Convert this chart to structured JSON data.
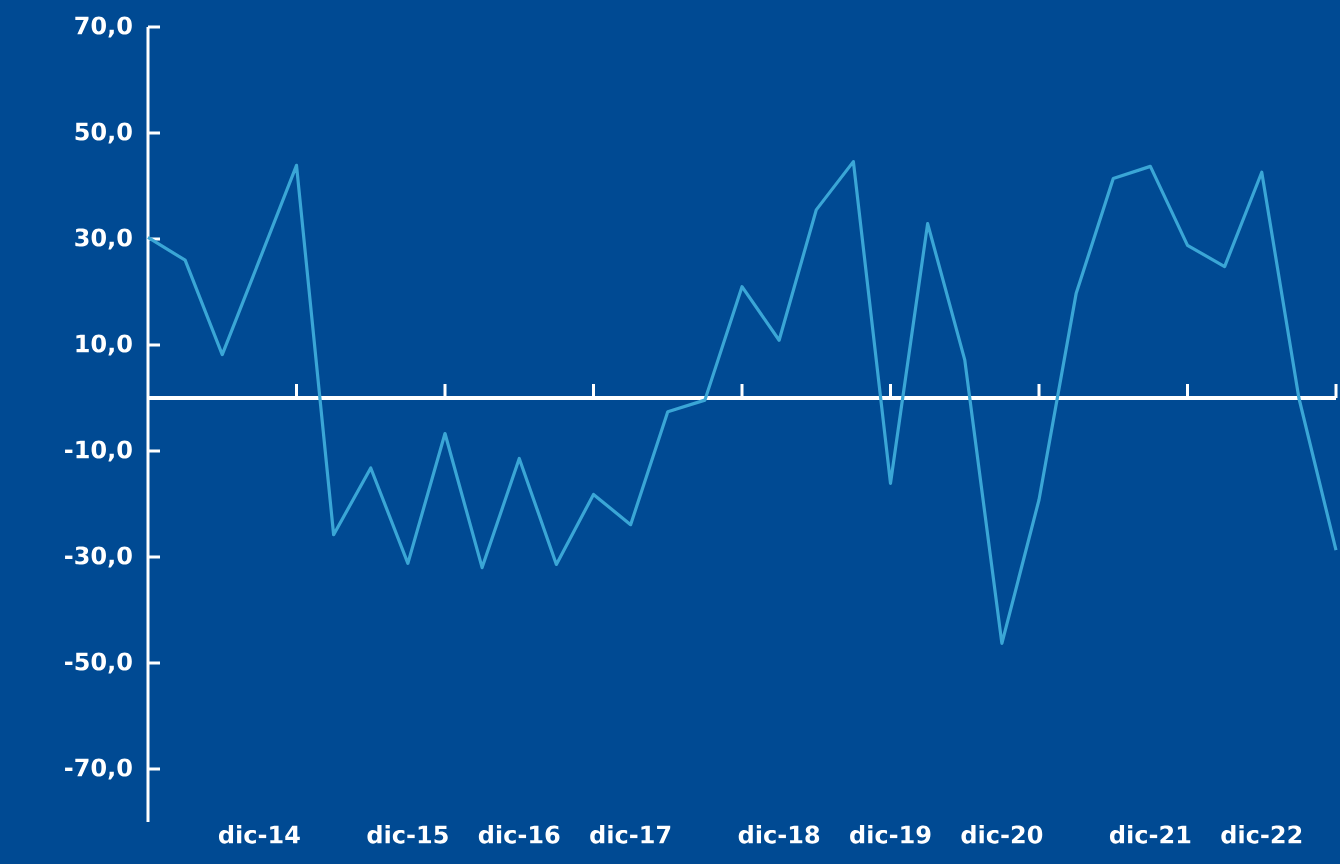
{
  "chart_data": {
    "type": "line",
    "categories": [
      null,
      null,
      null,
      "dic-14",
      null,
      null,
      null,
      "dic-15",
      null,
      null,
      "dic-16",
      null,
      null,
      "dic-17",
      null,
      null,
      null,
      "dic-18",
      null,
      null,
      "dic-19",
      null,
      null,
      "dic-20",
      null,
      null,
      null,
      "dic-21",
      null,
      null,
      "dic-22",
      null,
      null
    ],
    "series": [
      {
        "color": "#3aa6d6",
        "values": [
          30.3,
          26,
          8.2,
          26,
          43.9,
          -25.8,
          -13.2,
          -31.2,
          -6.7,
          -32,
          -11.4,
          -31.4,
          -18.2,
          -23.9,
          -2.6,
          -0.4,
          21,
          10.9,
          35.5,
          44.6,
          -16.1,
          32.9,
          7.2,
          -46.3,
          -19.2,
          19.7,
          41.4,
          43.7,
          28.8,
          24.8,
          42.6,
          0,
          -28.7
        ]
      }
    ],
    "ylim": [
      -80,
      70
    ],
    "yticks": [
      {
        "value": 70,
        "label": "70,0"
      },
      {
        "value": 50,
        "label": "50,0"
      },
      {
        "value": 30,
        "label": "30,0"
      },
      {
        "value": 10,
        "label": "10,0"
      },
      {
        "value": -10,
        "label": "-10,0"
      },
      {
        "value": -30,
        "label": "-30,0"
      },
      {
        "value": -50,
        "label": "-50,0"
      },
      {
        "value": -70,
        "label": "-70,0"
      }
    ],
    "ref_lines": [
      {
        "axis": "y",
        "value": 0,
        "color": "#ffffff"
      }
    ],
    "marker": "none",
    "line_style": "solid"
  }
}
